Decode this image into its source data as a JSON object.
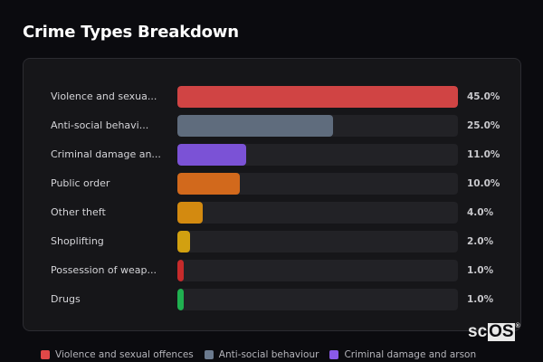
{
  "title": "Crime Types Breakdown",
  "rows": [
    {
      "label": "Violence and sexua...",
      "value": "45.0%",
      "pct": 45.0,
      "color": "#d04444"
    },
    {
      "label": "Anti-social behavi...",
      "value": "25.0%",
      "pct": 25.0,
      "color": "#5f6c7d"
    },
    {
      "label": "Criminal damage an...",
      "value": "11.0%",
      "pct": 11.0,
      "color": "#7b52d6"
    },
    {
      "label": "Public order",
      "value": "10.0%",
      "pct": 10.0,
      "color": "#d2691c"
    },
    {
      "label": "Other theft",
      "value": "4.0%",
      "pct": 4.0,
      "color": "#d38a10"
    },
    {
      "label": "Shoplifting",
      "value": "2.0%",
      "pct": 2.0,
      "color": "#d2a010"
    },
    {
      "label": "Possession of weap...",
      "value": "1.0%",
      "pct": 1.0,
      "color": "#c62b2b"
    },
    {
      "label": "Drugs",
      "value": "1.0%",
      "pct": 1.0,
      "color": "#20b050"
    }
  ],
  "legend": [
    {
      "label": "Violence and sexual offences",
      "color": "#e04848"
    },
    {
      "label": "Anti-social behaviour",
      "color": "#6b7a8f"
    },
    {
      "label": "Criminal damage and arson",
      "color": "#8a5ae8"
    }
  ],
  "watermark": {
    "prefix": "sc",
    "boxed": "OS",
    "mark": "®"
  },
  "chart_data": {
    "type": "bar",
    "orientation": "horizontal",
    "title": "Crime Types Breakdown",
    "categories": [
      "Violence and sexual offences",
      "Anti-social behaviour",
      "Criminal damage and arson",
      "Public order",
      "Other theft",
      "Shoplifting",
      "Possession of weapons",
      "Drugs"
    ],
    "display_labels": [
      "Violence and sexua...",
      "Anti-social behavi...",
      "Criminal damage an...",
      "Public order",
      "Other theft",
      "Shoplifting",
      "Possession of weap...",
      "Drugs"
    ],
    "values": [
      45.0,
      25.0,
      11.0,
      10.0,
      4.0,
      2.0,
      1.0,
      1.0
    ],
    "value_labels": [
      "45.0%",
      "25.0%",
      "11.0%",
      "10.0%",
      "4.0%",
      "2.0%",
      "1.0%",
      "1.0%"
    ],
    "colors": [
      "#d04444",
      "#5f6c7d",
      "#7b52d6",
      "#d2691c",
      "#d38a10",
      "#d2a010",
      "#c62b2b",
      "#20b050"
    ],
    "xlabel": "",
    "ylabel": "",
    "scale_max": 45.0,
    "grid": false,
    "legend_position": "bottom",
    "legend": [
      "Violence and sexual offences",
      "Anti-social behaviour",
      "Criminal damage and arson"
    ]
  }
}
